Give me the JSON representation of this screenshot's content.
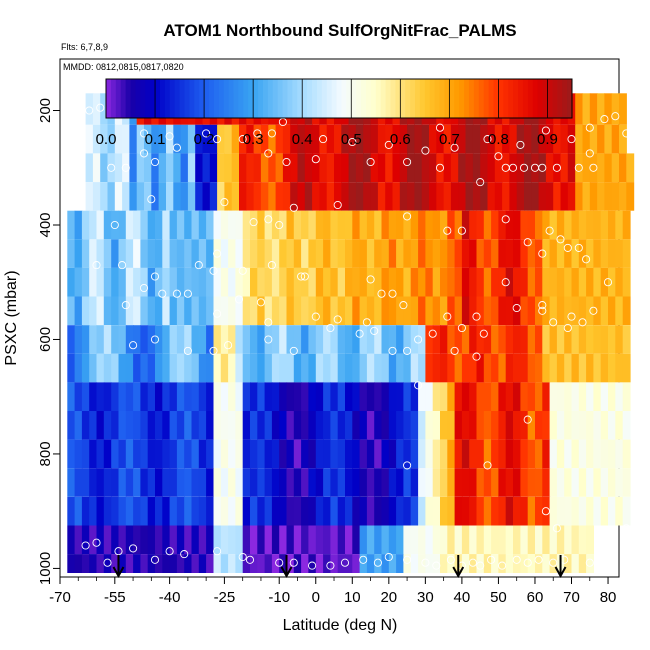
{
  "chart_data": {
    "type": "heatmap",
    "title": "ATOM1 Northbound SulfOrgNitFrac_PALMS",
    "flights_label": "Flts: 6,7,8,9",
    "dates_label": "MMDD: 0812,0815,0817,0820",
    "xlabel": "Latitude (deg N)",
    "ylabel": "PSXC (mbar)",
    "xlim": [
      -70,
      83
    ],
    "ylim": [
      1015,
      110
    ],
    "y_reversed": true,
    "x_ticks": [
      -70,
      -55,
      -40,
      -25,
      -10,
      0,
      10,
      20,
      30,
      40,
      50,
      60,
      70,
      80
    ],
    "x_tick_labels": [
      "-70",
      "-55",
      "-40",
      "-25",
      "-10",
      "0",
      "10",
      "20",
      "30",
      "40",
      "50",
      "60",
      "70",
      "80"
    ],
    "x_minor_ticks": [
      -65,
      -60,
      -50,
      -45,
      -35,
      -30,
      -20,
      -15,
      -5,
      5,
      15,
      25,
      35,
      45,
      55,
      65,
      75
    ],
    "y_ticks": [
      200,
      400,
      600,
      800,
      1000
    ],
    "y_tick_labels": [
      "200",
      "400",
      "600",
      "800",
      "1000"
    ],
    "colorbar": {
      "ticks": [
        0.0,
        0.1,
        0.2,
        0.3,
        0.4,
        0.5,
        0.6,
        0.7,
        0.8,
        0.9
      ],
      "tick_labels": [
        "0.0",
        "0.1",
        "0.2",
        "0.3",
        "0.4",
        "0.5",
        "0.6",
        "0.7",
        "0.8",
        "0.9"
      ],
      "range": [
        0.0,
        0.95
      ],
      "stops": [
        [
          0.0,
          "#8b28e0"
        ],
        [
          0.05,
          "#1a00a8"
        ],
        [
          0.1,
          "#0000c8"
        ],
        [
          0.2,
          "#1e5ef0"
        ],
        [
          0.3,
          "#39a4f2"
        ],
        [
          0.4,
          "#a6dcff"
        ],
        [
          0.48,
          "#f4fbff"
        ],
        [
          0.55,
          "#ffffcc"
        ],
        [
          0.65,
          "#ffc72e"
        ],
        [
          0.72,
          "#ff9a00"
        ],
        [
          0.8,
          "#ff3300"
        ],
        [
          0.88,
          "#dd0000"
        ],
        [
          0.95,
          "#9b1b1b"
        ]
      ]
    },
    "grid": false,
    "pressure_levels": [
      200,
      250,
      300,
      350,
      400,
      450,
      500,
      550,
      600,
      650,
      700,
      750,
      800,
      850,
      900,
      950,
      1000
    ],
    "flight_arrows_lat": [
      -54,
      -8,
      39,
      67
    ],
    "sample_points": [
      [
        -62,
        200
      ],
      [
        -59,
        195
      ],
      [
        -56,
        200
      ],
      [
        -47,
        240
      ],
      [
        -40,
        245
      ],
      [
        -30,
        240
      ],
      [
        -27,
        250
      ],
      [
        -16,
        240
      ],
      [
        -12,
        240
      ],
      [
        -9,
        220
      ],
      [
        2,
        250
      ],
      [
        10,
        255
      ],
      [
        20,
        260
      ],
      [
        30,
        270
      ],
      [
        34,
        230
      ],
      [
        40,
        190
      ],
      [
        47,
        250
      ],
      [
        56,
        260
      ],
      [
        63,
        235
      ],
      [
        70,
        250
      ],
      [
        75,
        230
      ],
      [
        79,
        215
      ],
      [
        82,
        210
      ],
      [
        85,
        240
      ],
      [
        -56,
        300
      ],
      [
        -52,
        300
      ],
      [
        -47,
        275
      ],
      [
        -44,
        290
      ],
      [
        -38,
        265
      ],
      [
        -20,
        250
      ],
      [
        -13,
        275
      ],
      [
        -8,
        290
      ],
      [
        0,
        285
      ],
      [
        15,
        290
      ],
      [
        25,
        290
      ],
      [
        34,
        300
      ],
      [
        38,
        265
      ],
      [
        50,
        280
      ],
      [
        52,
        300
      ],
      [
        54,
        300
      ],
      [
        57,
        300
      ],
      [
        60,
        300
      ],
      [
        62,
        300
      ],
      [
        66,
        300
      ],
      [
        72,
        300
      ],
      [
        75,
        275
      ],
      [
        76,
        300
      ],
      [
        -55,
        400
      ],
      [
        -45,
        355
      ],
      [
        -25,
        360
      ],
      [
        -17,
        395
      ],
      [
        -13,
        390
      ],
      [
        -10,
        400
      ],
      [
        -6,
        370
      ],
      [
        6,
        365
      ],
      [
        25,
        385
      ],
      [
        36,
        410
      ],
      [
        40,
        410
      ],
      [
        45,
        325
      ],
      [
        52,
        390
      ],
      [
        58,
        430
      ],
      [
        62,
        450
      ],
      [
        64,
        410
      ],
      [
        67,
        425
      ],
      [
        69,
        440
      ],
      [
        72,
        440
      ],
      [
        74,
        460
      ],
      [
        -60,
        470
      ],
      [
        -53,
        470
      ],
      [
        -44,
        490
      ],
      [
        -38,
        520
      ],
      [
        -32,
        470
      ],
      [
        -28,
        480
      ],
      [
        -27,
        450
      ],
      [
        -20,
        480
      ],
      [
        -12,
        470
      ],
      [
        -4,
        490
      ],
      [
        -3,
        490
      ],
      [
        15,
        495
      ],
      [
        18,
        520
      ],
      [
        21,
        520
      ],
      [
        24,
        540
      ],
      [
        52,
        500
      ],
      [
        62,
        540
      ],
      [
        70,
        560
      ],
      [
        73,
        570
      ],
      [
        76,
        550
      ],
      [
        80,
        500
      ],
      [
        -52,
        540
      ],
      [
        -47,
        510
      ],
      [
        -42,
        520
      ],
      [
        -35,
        520
      ],
      [
        -27,
        555
      ],
      [
        -21,
        530
      ],
      [
        -15,
        535
      ],
      [
        -13,
        570
      ],
      [
        0,
        560
      ],
      [
        6,
        565
      ],
      [
        14,
        570
      ],
      [
        16,
        585
      ],
      [
        21,
        620
      ],
      [
        25,
        620
      ],
      [
        28,
        600
      ],
      [
        32,
        590
      ],
      [
        36,
        560
      ],
      [
        40,
        580
      ],
      [
        44,
        560
      ],
      [
        46,
        590
      ],
      [
        55,
        545
      ],
      [
        62,
        550
      ],
      [
        65,
        570
      ],
      [
        69,
        580
      ],
      [
        -50,
        610
      ],
      [
        -44,
        600
      ],
      [
        -35,
        620
      ],
      [
        -28,
        620
      ],
      [
        -24,
        610
      ],
      [
        -13,
        600
      ],
      [
        -6,
        620
      ],
      [
        4,
        580
      ],
      [
        12,
        590
      ],
      [
        28,
        680
      ],
      [
        38,
        620
      ],
      [
        44,
        630
      ],
      [
        25,
        820
      ],
      [
        58,
        740
      ],
      [
        47,
        820
      ],
      [
        63,
        900
      ],
      [
        66,
        930
      ],
      [
        85,
        930
      ],
      [
        -63,
        960
      ],
      [
        -60,
        955
      ],
      [
        -57,
        990
      ],
      [
        -54,
        970
      ],
      [
        -50,
        965
      ],
      [
        -44,
        985
      ],
      [
        -40,
        970
      ],
      [
        -36,
        975
      ],
      [
        -27,
        970
      ],
      [
        -20,
        980
      ],
      [
        -18,
        985
      ],
      [
        -10,
        990
      ],
      [
        -6,
        990
      ],
      [
        -1,
        995
      ],
      [
        4,
        995
      ],
      [
        8,
        990
      ],
      [
        13,
        985
      ],
      [
        17,
        990
      ],
      [
        20,
        980
      ],
      [
        25,
        985
      ],
      [
        30,
        990
      ],
      [
        33,
        995
      ],
      [
        37,
        985
      ],
      [
        40,
        995
      ],
      [
        43,
        990
      ],
      [
        45,
        995
      ],
      [
        48,
        985
      ],
      [
        51,
        995
      ],
      [
        55,
        985
      ],
      [
        58,
        990
      ],
      [
        61,
        985
      ],
      [
        65,
        990
      ],
      [
        68,
        985
      ],
      [
        75,
        990
      ],
      [
        79,
        990
      ]
    ]
  }
}
